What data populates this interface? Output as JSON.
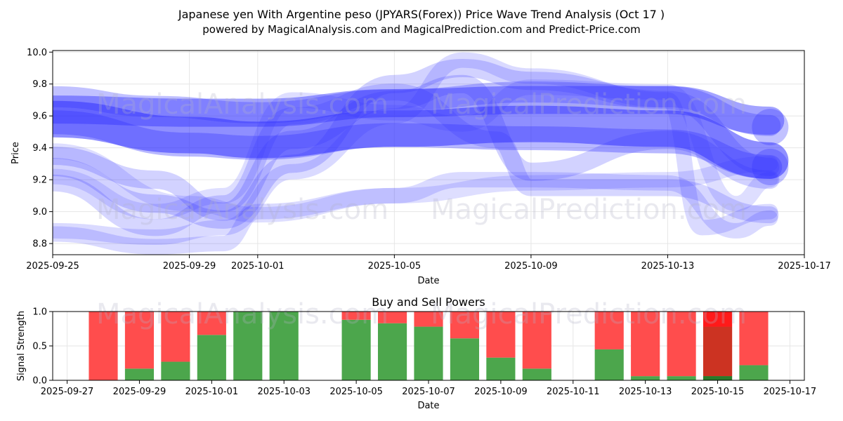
{
  "title_line1": "Japanese yen With Argentine peso (JPYARS(Forex)) Price Wave Trend Analysis (Oct 17 )",
  "title_line2": "powered by MagicalAnalysis.com and MagicalPrediction.com and Predict-Price.com",
  "watermarks": [
    "MagicalAnalysis.com",
    "MagicalPrediction.com"
  ],
  "colors": {
    "wave": "#3333ff",
    "buy": "#4ca64c",
    "sell": "#ff4d4d",
    "sell_strong": "#ff1a1a",
    "buy_strong": "#2a7a2a",
    "mixed": "#cc3322"
  },
  "chart_data": [
    {
      "type": "area",
      "title": "",
      "xlabel": "Date",
      "ylabel": "Price",
      "x_ticks": [
        "2025-09-25",
        "2025-09-29",
        "2025-10-01",
        "2025-10-05",
        "2025-10-09",
        "2025-10-13",
        "2025-10-17"
      ],
      "y_ticks": [
        "8.8",
        "9.0",
        "9.2",
        "9.4",
        "9.6",
        "9.8",
        "10.0"
      ],
      "xlim": [
        "2025-09-25",
        "2025-10-17"
      ],
      "ylim": [
        8.73,
        10.01
      ],
      "grid": true,
      "series": [
        {
          "x": [
            "2025-09-25",
            "2025-09-29",
            "2025-10-01",
            "2025-10-05",
            "2025-10-09",
            "2025-10-13",
            "2025-10-16"
          ],
          "y": [
            9.58,
            9.48,
            9.45,
            9.52,
            9.55,
            9.52,
            9.32
          ],
          "width": 52,
          "opacity": 0.55
        },
        {
          "x": [
            "2025-09-25",
            "2025-09-29",
            "2025-10-01",
            "2025-10-05",
            "2025-10-09",
            "2025-10-13",
            "2025-10-16"
          ],
          "y": [
            9.64,
            9.62,
            9.62,
            9.68,
            9.7,
            9.7,
            9.57
          ],
          "width": 40,
          "opacity": 0.45
        },
        {
          "x": [
            "2025-09-25",
            "2025-09-29",
            "2025-10-01",
            "2025-10-05",
            "2025-10-09",
            "2025-10-13",
            "2025-10-16"
          ],
          "y": [
            9.56,
            9.42,
            9.4,
            9.48,
            9.46,
            9.44,
            9.28
          ],
          "width": 34,
          "opacity": 0.35
        },
        {
          "x": [
            "2025-09-25",
            "2025-09-28",
            "2025-10-01",
            "2025-10-05",
            "2025-10-09",
            "2025-10-13",
            "2025-10-16"
          ],
          "y": [
            9.72,
            9.66,
            9.62,
            9.7,
            9.75,
            9.72,
            9.54
          ],
          "width": 30,
          "opacity": 0.3
        },
        {
          "x": [
            "2025-09-25",
            "2025-09-28",
            "2025-09-30",
            "2025-10-02",
            "2025-10-05",
            "2025-10-07",
            "2025-10-09",
            "2025-10-13",
            "2025-10-16"
          ],
          "y": [
            9.35,
            9.2,
            9.0,
            9.45,
            9.7,
            9.8,
            9.25,
            9.45,
            9.2
          ],
          "width": 26,
          "opacity": 0.22
        },
        {
          "x": [
            "2025-09-25",
            "2025-09-28",
            "2025-09-30",
            "2025-10-02",
            "2025-10-05",
            "2025-10-07",
            "2025-10-09",
            "2025-10-13",
            "2025-10-16"
          ],
          "y": [
            9.28,
            9.05,
            8.95,
            9.3,
            9.8,
            9.9,
            9.82,
            9.7,
            9.28
          ],
          "width": 26,
          "opacity": 0.22
        },
        {
          "x": [
            "2025-09-25",
            "2025-09-28",
            "2025-09-30",
            "2025-10-02",
            "2025-10-05",
            "2025-10-08",
            "2025-10-09",
            "2025-10-13",
            "2025-10-16"
          ],
          "y": [
            9.18,
            8.9,
            9.05,
            9.6,
            9.75,
            9.45,
            9.15,
            9.15,
            8.98
          ],
          "width": 24,
          "opacity": 0.2
        },
        {
          "x": [
            "2025-09-25",
            "2025-09-28",
            "2025-09-30",
            "2025-10-02",
            "2025-10-05",
            "2025-10-07",
            "2025-10-09",
            "2025-10-13",
            "2025-10-14",
            "2025-10-16"
          ],
          "y": [
            8.88,
            8.84,
            8.9,
            9.25,
            9.6,
            9.95,
            9.85,
            9.7,
            8.9,
            9.0
          ],
          "width": 22,
          "opacity": 0.18
        },
        {
          "x": [
            "2025-09-25",
            "2025-09-28",
            "2025-09-30",
            "2025-10-01",
            "2025-10-05",
            "2025-10-07",
            "2025-10-09",
            "2025-10-13",
            "2025-10-15",
            "2025-10-16"
          ],
          "y": [
            8.86,
            8.78,
            8.8,
            9.0,
            9.1,
            9.2,
            9.2,
            9.18,
            8.88,
            8.96
          ],
          "width": 22,
          "opacity": 0.18
        },
        {
          "x": [
            "2025-09-25",
            "2025-09-29",
            "2025-10-01",
            "2025-10-05",
            "2025-10-09",
            "2025-10-13",
            "2025-10-16"
          ],
          "y": [
            9.38,
            9.05,
            8.98,
            9.1,
            9.18,
            9.2,
            9.3
          ],
          "width": 22,
          "opacity": 0.16
        },
        {
          "x": [
            "2025-09-25",
            "2025-09-28",
            "2025-09-30",
            "2025-10-02",
            "2025-10-05",
            "2025-10-07",
            "2025-10-09",
            "2025-10-13",
            "2025-10-15",
            "2025-10-16"
          ],
          "y": [
            9.22,
            9.0,
            9.1,
            9.7,
            9.62,
            9.55,
            9.78,
            9.75,
            9.05,
            9.2
          ],
          "width": 22,
          "opacity": 0.16
        }
      ],
      "end_markers": [
        {
          "x": "2025-10-16",
          "y": 9.53
        },
        {
          "x": "2025-10-16",
          "y": 9.28
        }
      ]
    },
    {
      "type": "bar",
      "title": "Buy and Sell Powers",
      "xlabel": "Date",
      "ylabel": "Signal Strength",
      "x_ticks": [
        "2025-09-27",
        "2025-09-29",
        "2025-10-01",
        "2025-10-03",
        "2025-10-05",
        "2025-10-07",
        "2025-10-09",
        "2025-10-11",
        "2025-10-13",
        "2025-10-15",
        "2025-10-17"
      ],
      "y_ticks": [
        "0.0",
        "0.5",
        "1.0"
      ],
      "xlim": [
        "2025-09-26.6",
        "2025-10-17.4"
      ],
      "ylim": [
        0,
        1
      ],
      "grid": true,
      "categories": [
        "2025-09-28",
        "2025-09-29",
        "2025-09-30",
        "2025-10-01",
        "2025-10-02",
        "2025-10-03",
        "2025-10-05",
        "2025-10-06",
        "2025-10-07",
        "2025-10-08",
        "2025-10-09",
        "2025-10-10",
        "2025-10-12",
        "2025-10-13",
        "2025-10-14",
        "2025-10-15",
        "2025-10-16"
      ],
      "series": [
        {
          "name": "Buy",
          "values": [
            0.0,
            0.17,
            0.27,
            0.66,
            1.0,
            1.0,
            0.88,
            0.83,
            0.78,
            0.61,
            0.33,
            0.17,
            0.45,
            0.06,
            0.06,
            0.06,
            0.22
          ]
        },
        {
          "name": "Sell",
          "values": [
            1.0,
            0.83,
            0.73,
            0.34,
            0.0,
            0.0,
            0.12,
            0.17,
            0.22,
            0.39,
            0.67,
            0.83,
            0.55,
            0.94,
            0.94,
            0.94,
            0.78
          ]
        }
      ]
    }
  ]
}
